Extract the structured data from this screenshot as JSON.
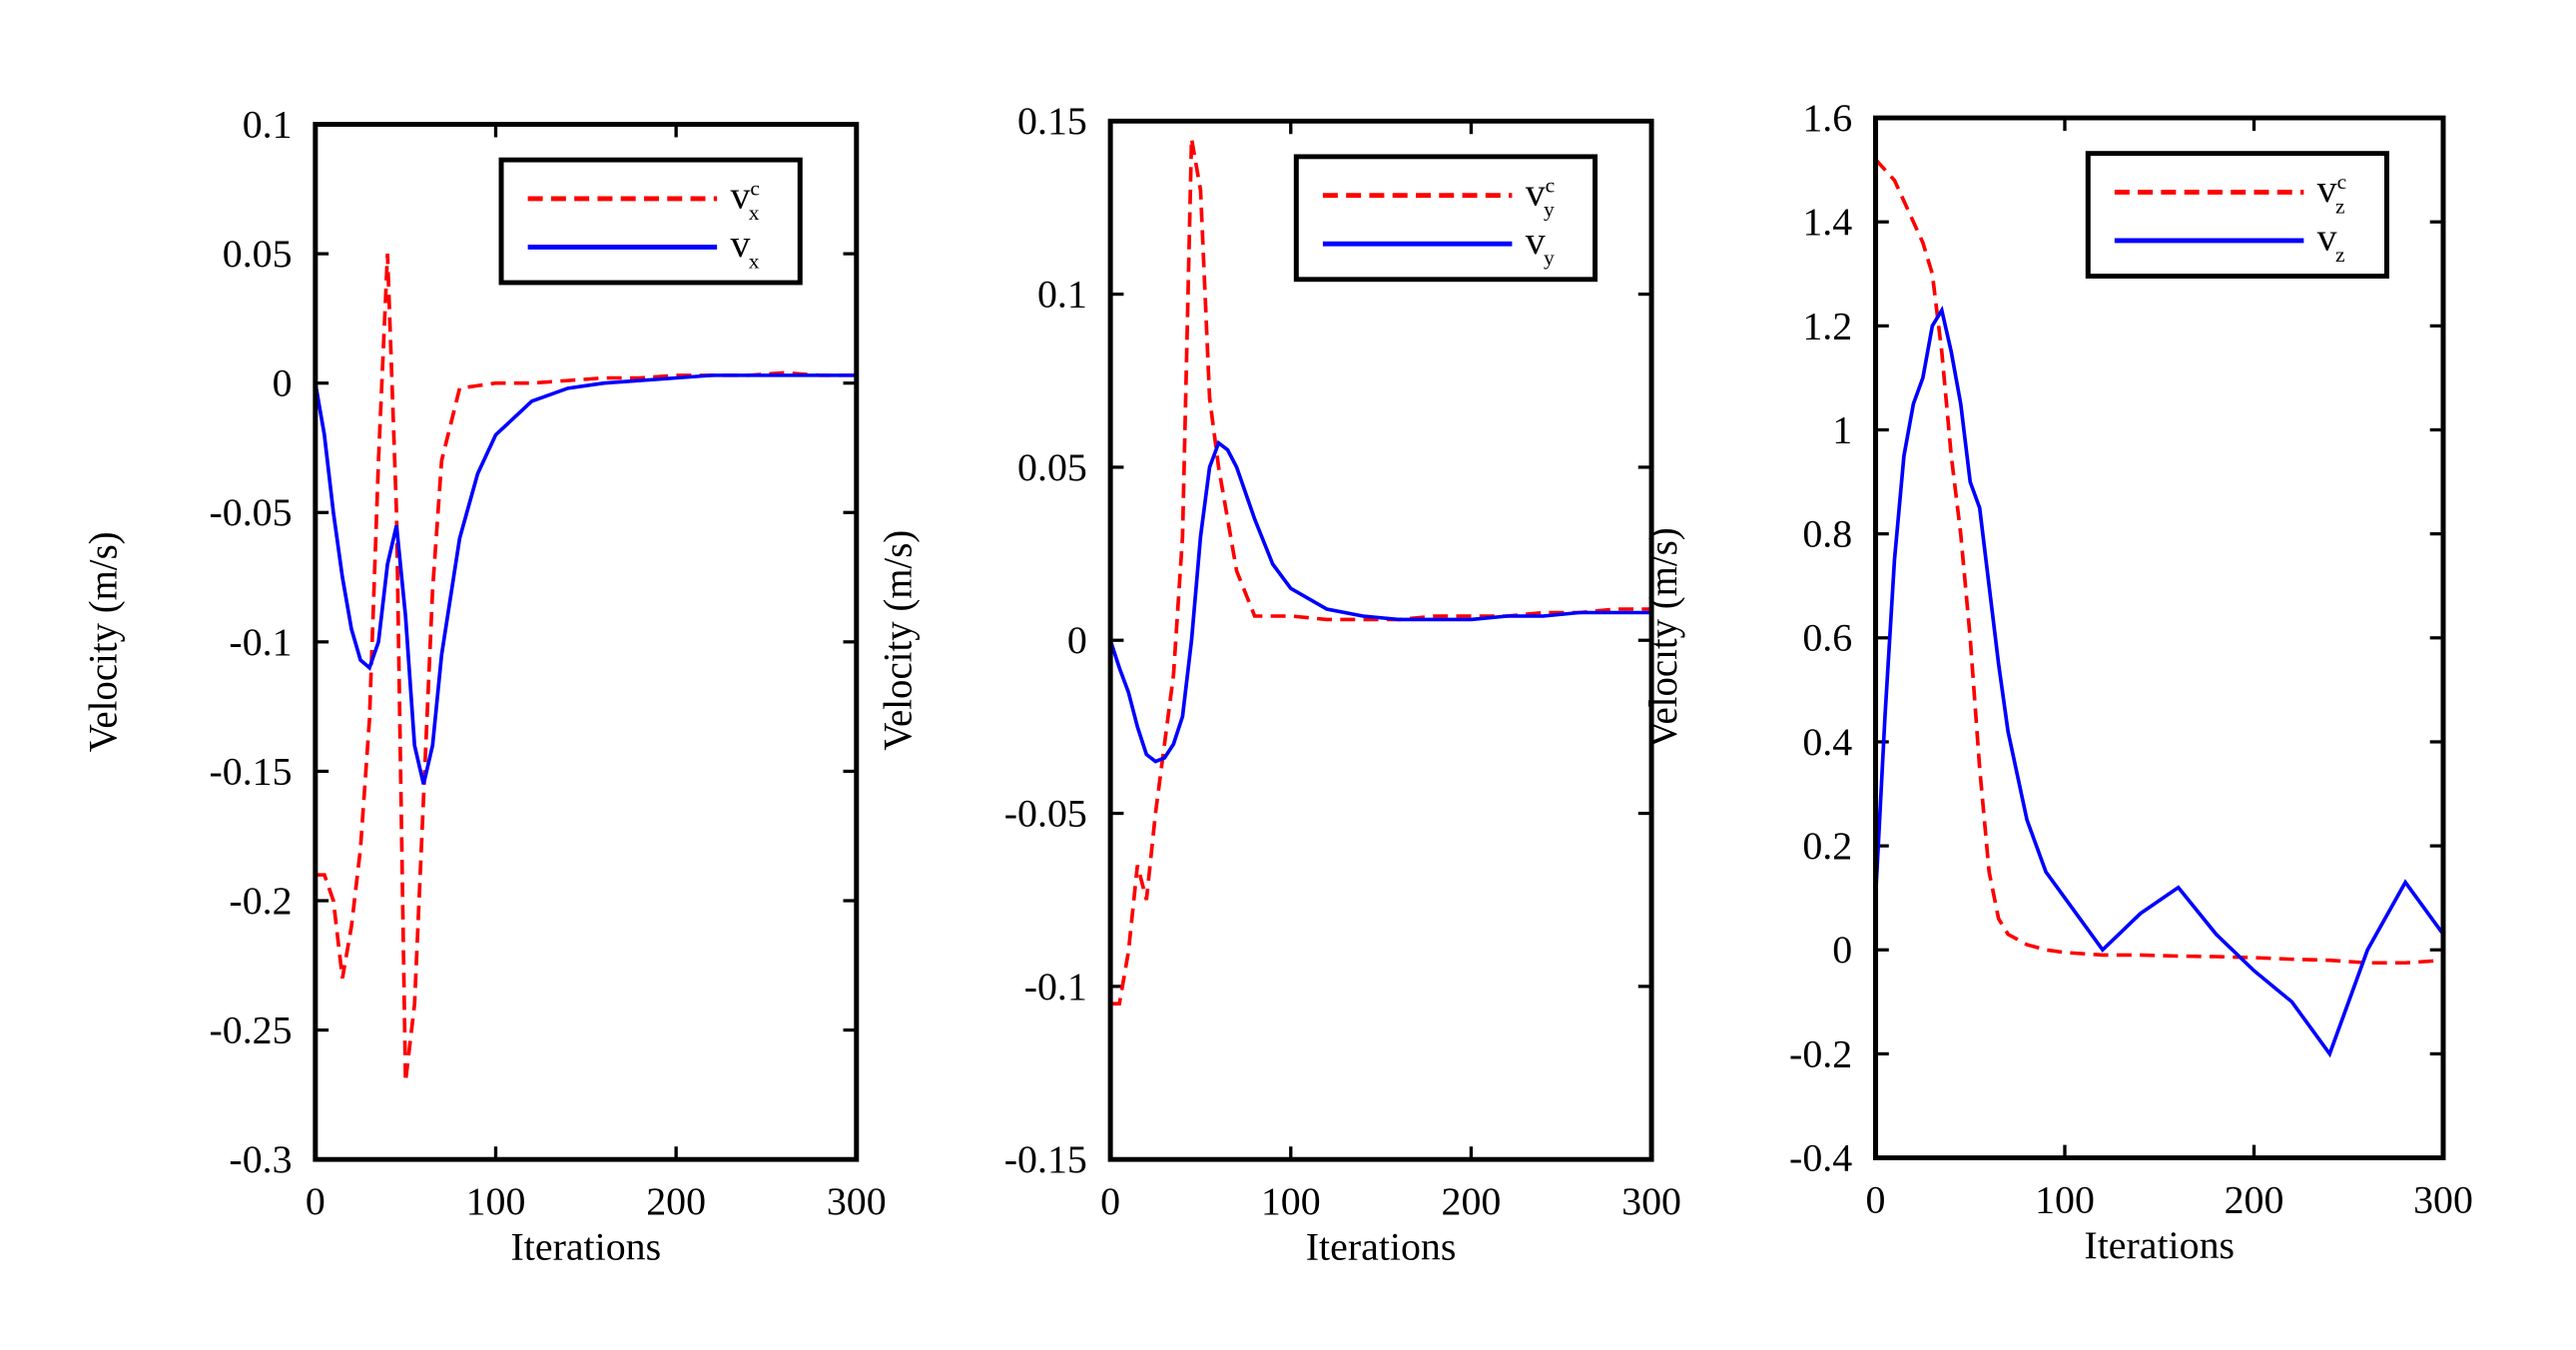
{
  "chart_data": [
    {
      "type": "line",
      "xlabel": "Iterations",
      "ylabel": "Velocity (m/s)",
      "xlim": [
        0,
        300
      ],
      "xticks": [
        0,
        100,
        200,
        300
      ],
      "ylim": [
        -0.3,
        0.1
      ],
      "yticks": [
        -0.3,
        -0.25,
        -0.2,
        -0.15,
        -0.1,
        -0.05,
        0,
        0.05,
        0.1
      ],
      "legend": "upper right",
      "x": [
        0,
        5,
        10,
        15,
        20,
        25,
        30,
        35,
        40,
        45,
        50,
        55,
        60,
        65,
        70,
        80,
        90,
        100,
        120,
        140,
        160,
        180,
        200,
        220,
        240,
        260,
        280,
        300
      ],
      "series": [
        {
          "name": "v",
          "superscript": "c",
          "subscript": "x",
          "color": "#ff0000",
          "dash": true,
          "values": [
            -0.19,
            -0.19,
            -0.2,
            -0.23,
            -0.21,
            -0.18,
            -0.13,
            -0.03,
            0.05,
            -0.05,
            -0.27,
            -0.24,
            -0.16,
            -0.08,
            -0.03,
            -0.002,
            -0.001,
            0,
            0,
            0.001,
            0.002,
            0.002,
            0.003,
            0.003,
            0.003,
            0.004,
            0.003,
            0.003
          ]
        },
        {
          "name": "v",
          "subscript": "x",
          "color": "#0000ff",
          "dash": false,
          "values": [
            0,
            -0.02,
            -0.05,
            -0.075,
            -0.095,
            -0.107,
            -0.11,
            -0.1,
            -0.07,
            -0.055,
            -0.09,
            -0.14,
            -0.155,
            -0.14,
            -0.105,
            -0.06,
            -0.035,
            -0.02,
            -0.007,
            -0.002,
            0,
            0.001,
            0.002,
            0.003,
            0.003,
            0.003,
            0.003,
            0.003
          ]
        }
      ]
    },
    {
      "type": "line",
      "xlabel": "Iterations",
      "ylabel": "Velocity (m/s)",
      "xlim": [
        0,
        300
      ],
      "xticks": [
        0,
        100,
        200,
        300
      ],
      "ylim": [
        -0.15,
        0.15
      ],
      "yticks": [
        -0.15,
        -0.1,
        -0.05,
        0,
        0.05,
        0.1,
        0.15
      ],
      "legend": "upper right",
      "x": [
        0,
        5,
        10,
        15,
        20,
        25,
        30,
        35,
        40,
        45,
        50,
        55,
        60,
        65,
        70,
        80,
        90,
        100,
        120,
        140,
        160,
        180,
        200,
        220,
        240,
        260,
        280,
        300
      ],
      "series": [
        {
          "name": "v",
          "superscript": "c",
          "subscript": "y",
          "color": "#ff0000",
          "dash": true,
          "values": [
            -0.105,
            -0.105,
            -0.09,
            -0.065,
            -0.075,
            -0.05,
            -0.03,
            -0.01,
            0.03,
            0.145,
            0.13,
            0.07,
            0.05,
            0.035,
            0.02,
            0.007,
            0.007,
            0.007,
            0.006,
            0.006,
            0.006,
            0.007,
            0.007,
            0.007,
            0.008,
            0.008,
            0.009,
            0.009
          ]
        },
        {
          "name": "v",
          "subscript": "y",
          "color": "#0000ff",
          "dash": false,
          "values": [
            0,
            -0.008,
            -0.015,
            -0.025,
            -0.033,
            -0.035,
            -0.034,
            -0.03,
            -0.022,
            0,
            0.03,
            0.05,
            0.057,
            0.055,
            0.05,
            0.035,
            0.022,
            0.015,
            0.009,
            0.007,
            0.006,
            0.006,
            0.006,
            0.007,
            0.007,
            0.008,
            0.008,
            0.008
          ]
        }
      ]
    },
    {
      "type": "line",
      "xlabel": "Iterations",
      "ylabel": "Velocity (m/s)",
      "xlim": [
        0,
        300
      ],
      "xticks": [
        0,
        100,
        200,
        300
      ],
      "ylim": [
        -0.4,
        1.6
      ],
      "yticks": [
        -0.4,
        -0.2,
        0,
        0.2,
        0.4,
        0.6,
        0.8,
        1,
        1.2,
        1.4,
        1.6
      ],
      "legend": "upper right",
      "x": [
        0,
        5,
        10,
        15,
        20,
        25,
        30,
        35,
        40,
        45,
        50,
        55,
        60,
        65,
        70,
        80,
        90,
        100,
        120,
        140,
        160,
        180,
        200,
        220,
        240,
        260,
        280,
        300
      ],
      "series": [
        {
          "name": "v",
          "superscript": "c",
          "subscript": "z",
          "color": "#ff0000",
          "dash": true,
          "values": [
            1.52,
            1.5,
            1.48,
            1.44,
            1.4,
            1.36,
            1.3,
            1.15,
            0.95,
            0.8,
            0.6,
            0.35,
            0.15,
            0.06,
            0.03,
            0.01,
            0,
            -0.005,
            -0.01,
            -0.01,
            -0.012,
            -0.013,
            -0.015,
            -0.018,
            -0.02,
            -0.025,
            -0.025,
            -0.02
          ]
        },
        {
          "name": "v",
          "subscript": "z",
          "color": "#0000ff",
          "dash": false,
          "values": [
            0.1,
            0.45,
            0.75,
            0.95,
            1.05,
            1.1,
            1.2,
            1.23,
            1.15,
            1.05,
            0.9,
            0.85,
            0.7,
            0.55,
            0.42,
            0.25,
            0.15,
            0.1,
            0,
            0.07,
            0.12,
            0.03,
            -0.04,
            -0.1,
            -0.2,
            0,
            0.13,
            0.03
          ]
        }
      ]
    }
  ]
}
